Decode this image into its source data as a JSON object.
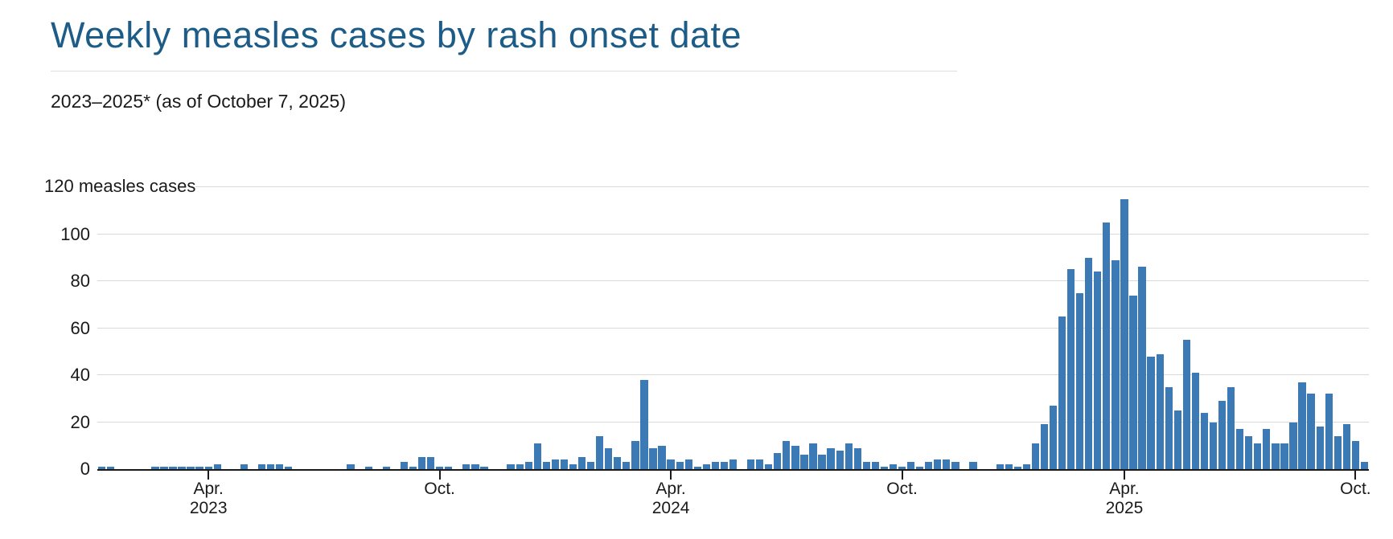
{
  "header": {
    "title": "Weekly measles cases by rash onset date",
    "subtitle": "2023–2025* (as of October 7, 2025)"
  },
  "colors": {
    "title_blue": "#1e5c88",
    "bar_blue": "#3c7ab5",
    "gridline_gray": "#d9d9d9",
    "axis_black": "#1a1a1a"
  },
  "chart_data": {
    "type": "bar",
    "title": "Weekly measles cases by rash onset date",
    "subtitle": "2023–2025* (as of October 7, 2025)",
    "y_top_label": "120 measles cases",
    "ylabel": "measles cases",
    "ylim": [
      0,
      120
    ],
    "yticks": [
      0,
      20,
      40,
      60,
      80,
      100,
      120
    ],
    "grid": true,
    "legend": false,
    "x_unit": "week (one bar per week, Jan 2023 – Oct 2025)",
    "xticks": [
      {
        "index": 12,
        "month": "Apr.",
        "year": "2023"
      },
      {
        "index": 38,
        "month": "Oct.",
        "year": ""
      },
      {
        "index": 64,
        "month": "Apr.",
        "year": "2024"
      },
      {
        "index": 90,
        "month": "Oct.",
        "year": ""
      },
      {
        "index": 115,
        "month": "Apr.",
        "year": "2025"
      },
      {
        "index": 141,
        "month": "Oct.",
        "year": ""
      }
    ],
    "values": [
      1,
      1,
      0,
      0,
      0,
      0,
      1,
      1,
      1,
      1,
      1,
      1,
      1,
      2,
      0,
      0,
      2,
      0,
      2,
      2,
      2,
      1,
      0,
      0,
      0,
      0,
      0,
      0,
      2,
      0,
      1,
      0,
      1,
      0,
      3,
      1,
      5,
      5,
      1,
      1,
      0,
      2,
      2,
      1,
      0,
      0,
      2,
      2,
      3,
      11,
      3,
      4,
      4,
      2,
      5,
      3,
      14,
      9,
      5,
      3,
      12,
      38,
      9,
      10,
      4,
      3,
      4,
      1,
      2,
      3,
      3,
      4,
      0,
      4,
      4,
      2,
      7,
      12,
      10,
      6,
      11,
      6,
      9,
      8,
      11,
      9,
      3,
      3,
      1,
      2,
      1,
      3,
      1,
      3,
      4,
      4,
      3,
      0,
      3,
      0,
      0,
      2,
      2,
      1,
      2,
      11,
      19,
      27,
      65,
      85,
      75,
      90,
      84,
      105,
      89,
      115,
      74,
      86,
      48,
      49,
      35,
      25,
      55,
      41,
      24,
      20,
      29,
      35,
      17,
      14,
      11,
      17,
      11,
      11,
      20,
      37,
      32,
      18,
      32,
      14,
      19,
      12,
      3
    ]
  }
}
